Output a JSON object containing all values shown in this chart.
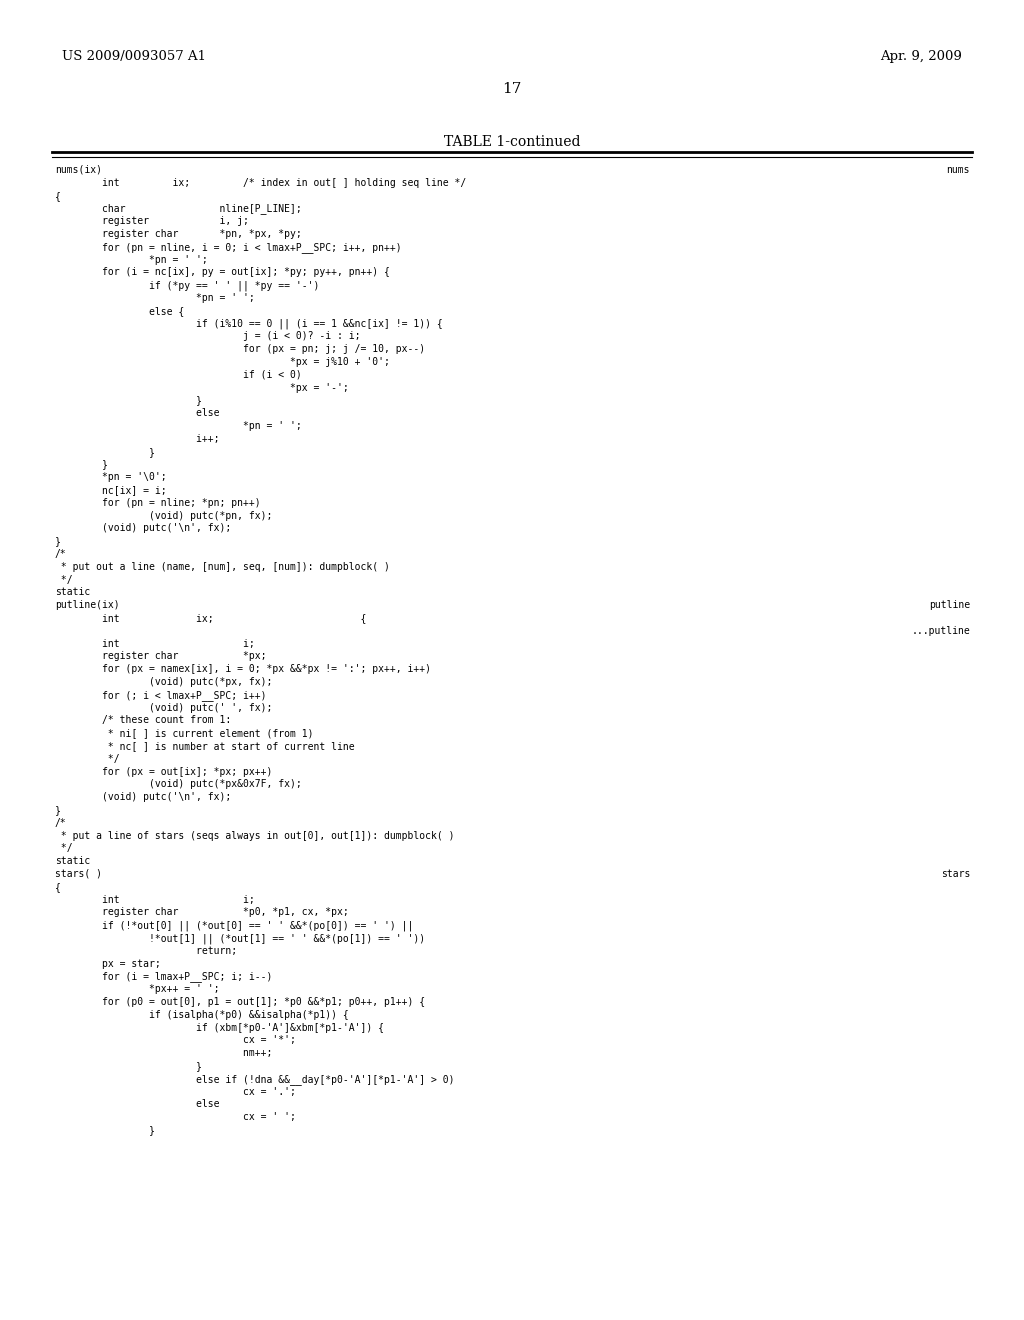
{
  "header_left": "US 2009/0093057 A1",
  "header_right": "Apr. 9, 2009",
  "page_number": "17",
  "table_title": "TABLE 1-continued",
  "background_color": "#ffffff",
  "text_color": "#000000",
  "code_lines": [
    {
      "text": "nums(ix)",
      "indent": 0,
      "right": "nums"
    },
    {
      "text": "        int         ix;         /* index in out[ ] holding seq line */",
      "indent": 0,
      "right": ""
    },
    {
      "text": "{",
      "indent": 0,
      "right": ""
    },
    {
      "text": "        char                nline[P_LINE];",
      "indent": 0,
      "right": ""
    },
    {
      "text": "        register            i, j;",
      "indent": 0,
      "right": ""
    },
    {
      "text": "        register char       *pn, *px, *py;",
      "indent": 0,
      "right": ""
    },
    {
      "text": "        for (pn = nline, i = 0; i < lmax+P__SPC; i++, pn++)",
      "indent": 0,
      "right": ""
    },
    {
      "text": "                *pn = ' ';",
      "indent": 0,
      "right": ""
    },
    {
      "text": "        for (i = nc[ix], py = out[ix]; *py; py++, pn++) {",
      "indent": 0,
      "right": ""
    },
    {
      "text": "                if (*py == ' ' || *py == '-')",
      "indent": 0,
      "right": ""
    },
    {
      "text": "                        *pn = ' ';",
      "indent": 0,
      "right": ""
    },
    {
      "text": "                else {",
      "indent": 0,
      "right": ""
    },
    {
      "text": "                        if (i%10 == 0 || (i == 1 &&nc[ix] != 1)) {",
      "indent": 0,
      "right": ""
    },
    {
      "text": "                                j = (i < 0)? -i : i;",
      "indent": 0,
      "right": ""
    },
    {
      "text": "                                for (px = pn; j; j /= 10, px--)",
      "indent": 0,
      "right": ""
    },
    {
      "text": "                                        *px = j%10 + '0';",
      "indent": 0,
      "right": ""
    },
    {
      "text": "                                if (i < 0)",
      "indent": 0,
      "right": ""
    },
    {
      "text": "                                        *px = '-';",
      "indent": 0,
      "right": ""
    },
    {
      "text": "                        }",
      "indent": 0,
      "right": ""
    },
    {
      "text": "                        else",
      "indent": 0,
      "right": ""
    },
    {
      "text": "                                *pn = ' ';",
      "indent": 0,
      "right": ""
    },
    {
      "text": "                        i++;",
      "indent": 0,
      "right": ""
    },
    {
      "text": "                }",
      "indent": 0,
      "right": ""
    },
    {
      "text": "        }",
      "indent": 0,
      "right": ""
    },
    {
      "text": "        *pn = '\\0';",
      "indent": 0,
      "right": ""
    },
    {
      "text": "        nc[ix] = i;",
      "indent": 0,
      "right": ""
    },
    {
      "text": "        for (pn = nline; *pn; pn++)",
      "indent": 0,
      "right": ""
    },
    {
      "text": "                (void) putc(*pn, fx);",
      "indent": 0,
      "right": ""
    },
    {
      "text": "        (void) putc('\\n', fx);",
      "indent": 0,
      "right": ""
    },
    {
      "text": "}",
      "indent": 0,
      "right": ""
    },
    {
      "text": "/*",
      "indent": 0,
      "right": ""
    },
    {
      "text": " * put out a line (name, [num], seq, [num]): dumpblock( )",
      "indent": 0,
      "right": ""
    },
    {
      "text": " */",
      "indent": 0,
      "right": ""
    },
    {
      "text": "static",
      "indent": 0,
      "right": ""
    },
    {
      "text": "putline(ix)",
      "indent": 0,
      "right": "putline"
    },
    {
      "text": "        int             ix;                         {",
      "indent": 0,
      "right": ""
    },
    {
      "text": "",
      "indent": 0,
      "right": "...putline"
    },
    {
      "text": "        int                     i;",
      "indent": 0,
      "right": ""
    },
    {
      "text": "        register char           *px;",
      "indent": 0,
      "right": ""
    },
    {
      "text": "        for (px = namex[ix], i = 0; *px &&*px != ':'; px++, i++)",
      "indent": 0,
      "right": ""
    },
    {
      "text": "                (void) putc(*px, fx);",
      "indent": 0,
      "right": ""
    },
    {
      "text": "        for (; i < lmax+P__SPC; i++)",
      "indent": 0,
      "right": ""
    },
    {
      "text": "                (void) putc(' ', fx);",
      "indent": 0,
      "right": ""
    },
    {
      "text": "        /* these count from 1:",
      "indent": 0,
      "right": ""
    },
    {
      "text": "         * ni[ ] is current element (from 1)",
      "indent": 0,
      "right": ""
    },
    {
      "text": "         * nc[ ] is number at start of current line",
      "indent": 0,
      "right": ""
    },
    {
      "text": "         */",
      "indent": 0,
      "right": ""
    },
    {
      "text": "        for (px = out[ix]; *px; px++)",
      "indent": 0,
      "right": ""
    },
    {
      "text": "                (void) putc(*px&0x7F, fx);",
      "indent": 0,
      "right": ""
    },
    {
      "text": "        (void) putc('\\n', fx);",
      "indent": 0,
      "right": ""
    },
    {
      "text": "}",
      "indent": 0,
      "right": ""
    },
    {
      "text": "/*",
      "indent": 0,
      "right": ""
    },
    {
      "text": " * put a line of stars (seqs always in out[0], out[1]): dumpblock( )",
      "indent": 0,
      "right": ""
    },
    {
      "text": " */",
      "indent": 0,
      "right": ""
    },
    {
      "text": "static",
      "indent": 0,
      "right": ""
    },
    {
      "text": "stars( )",
      "indent": 0,
      "right": "stars"
    },
    {
      "text": "{",
      "indent": 0,
      "right": ""
    },
    {
      "text": "        int                     i;",
      "indent": 0,
      "right": ""
    },
    {
      "text": "        register char           *p0, *p1, cx, *px;",
      "indent": 0,
      "right": ""
    },
    {
      "text": "        if (!*out[0] || (*out[0] == ' ' &&*(po[0]) == ' ') ||",
      "indent": 0,
      "right": ""
    },
    {
      "text": "                !*out[1] || (*out[1] == ' ' &&*(po[1]) == ' '))",
      "indent": 0,
      "right": ""
    },
    {
      "text": "                        return;",
      "indent": 0,
      "right": ""
    },
    {
      "text": "        px = star;",
      "indent": 0,
      "right": ""
    },
    {
      "text": "        for (i = lmax+P__SPC; i; i--)",
      "indent": 0,
      "right": ""
    },
    {
      "text": "                *px++ = ' ';",
      "indent": 0,
      "right": ""
    },
    {
      "text": "        for (p0 = out[0], p1 = out[1]; *p0 &&*p1; p0++, p1++) {",
      "indent": 0,
      "right": ""
    },
    {
      "text": "                if (isalpha(*p0) &&isalpha(*p1)) {",
      "indent": 0,
      "right": ""
    },
    {
      "text": "                        if (xbm[*p0-'A']&xbm[*p1-'A']) {",
      "indent": 0,
      "right": ""
    },
    {
      "text": "                                cx = '*';",
      "indent": 0,
      "right": ""
    },
    {
      "text": "                                nm++;",
      "indent": 0,
      "right": ""
    },
    {
      "text": "                        }",
      "indent": 0,
      "right": ""
    },
    {
      "text": "                        else if (!dna &&__day[*p0-'A'][*p1-'A'] > 0)",
      "indent": 0,
      "right": ""
    },
    {
      "text": "                                cx = '.';",
      "indent": 0,
      "right": ""
    },
    {
      "text": "                        else",
      "indent": 0,
      "right": ""
    },
    {
      "text": "                                cx = ' ';",
      "indent": 0,
      "right": ""
    },
    {
      "text": "                }",
      "indent": 0,
      "right": ""
    }
  ]
}
